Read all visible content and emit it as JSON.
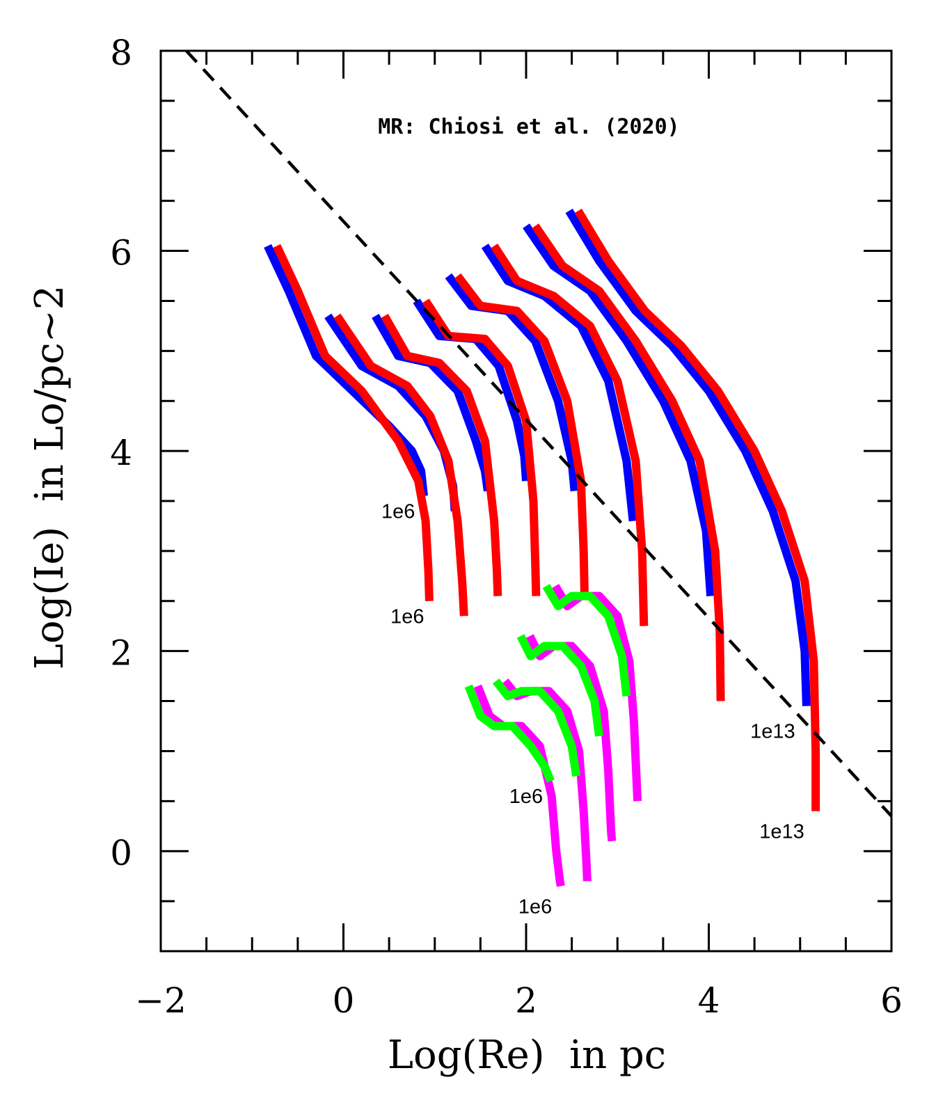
{
  "chart_data": {
    "type": "line",
    "title": "MR: Chiosi et al. (2020)",
    "xlabel": "Log(Re)  in pc",
    "ylabel": "Log(Ie)  in Lo/pc~2",
    "xlim": [
      -2,
      6
    ],
    "ylim": [
      -1,
      8
    ],
    "xticks": [
      -2,
      0,
      2,
      4,
      6
    ],
    "yticks": [
      0,
      2,
      4,
      6,
      8
    ],
    "xticklabels": [
      "−2",
      "0",
      "2",
      "4",
      "6"
    ],
    "yticklabels": [
      "0",
      "2",
      "4",
      "6",
      "8"
    ],
    "reference_line": {
      "name": "dashed line",
      "x": [
        -1.72,
        6.0
      ],
      "y": [
        8.0,
        0.35
      ],
      "color": "#000000"
    },
    "colors": {
      "blue": "#0000ff",
      "red": "#ff0000",
      "magenta": "#ff00ff",
      "green": "#00ff00"
    },
    "series": [
      {
        "name": "blue-1",
        "color": "blue",
        "x": [
          -0.83,
          -0.6,
          -0.3,
          0.1,
          0.5,
          0.75,
          0.85,
          0.88
        ],
        "y": [
          6.05,
          5.6,
          4.95,
          4.6,
          4.25,
          4.0,
          3.8,
          3.55
        ]
      },
      {
        "name": "red-1",
        "color": "red",
        "x": [
          -0.73,
          -0.5,
          -0.2,
          0.2,
          0.6,
          0.82,
          0.9,
          0.93,
          0.94
        ],
        "y": [
          6.05,
          5.6,
          4.95,
          4.6,
          4.1,
          3.7,
          3.3,
          2.8,
          2.5
        ]
      },
      {
        "name": "blue-2",
        "color": "blue",
        "x": [
          -0.17,
          0.2,
          0.6,
          0.9,
          1.1,
          1.2,
          1.22
        ],
        "y": [
          5.35,
          4.85,
          4.65,
          4.35,
          4.0,
          3.65,
          3.4
        ]
      },
      {
        "name": "red-2",
        "color": "red",
        "x": [
          -0.07,
          0.3,
          0.7,
          0.95,
          1.15,
          1.25,
          1.3,
          1.32
        ],
        "y": [
          5.35,
          4.85,
          4.65,
          4.35,
          3.9,
          3.3,
          2.7,
          2.35
        ]
      },
      {
        "name": "blue-3",
        "color": "blue",
        "x": [
          0.35,
          0.6,
          0.95,
          1.25,
          1.45,
          1.55,
          1.58
        ],
        "y": [
          5.35,
          4.95,
          4.88,
          4.6,
          4.1,
          3.8,
          3.6
        ]
      },
      {
        "name": "red-3",
        "color": "red",
        "x": [
          0.45,
          0.7,
          1.05,
          1.35,
          1.55,
          1.65,
          1.68,
          1.69
        ],
        "y": [
          5.35,
          4.95,
          4.88,
          4.6,
          4.1,
          3.3,
          2.8,
          2.55
        ]
      },
      {
        "name": "blue-4",
        "color": "blue",
        "x": [
          0.8,
          1.05,
          1.45,
          1.7,
          1.9,
          1.98,
          2.0
        ],
        "y": [
          5.5,
          5.15,
          5.12,
          4.85,
          4.3,
          3.95,
          3.7
        ]
      },
      {
        "name": "red-4",
        "color": "red",
        "x": [
          0.9,
          1.15,
          1.55,
          1.8,
          2.0,
          2.08,
          2.1,
          2.11
        ],
        "y": [
          5.5,
          5.15,
          5.12,
          4.85,
          4.3,
          3.5,
          2.9,
          2.55
        ]
      },
      {
        "name": "blue-5",
        "color": "blue",
        "x": [
          1.15,
          1.4,
          1.8,
          2.1,
          2.35,
          2.5,
          2.53
        ],
        "y": [
          5.75,
          5.45,
          5.4,
          5.1,
          4.5,
          3.9,
          3.6
        ]
      },
      {
        "name": "red-5",
        "color": "red",
        "x": [
          1.25,
          1.5,
          1.9,
          2.2,
          2.45,
          2.6,
          2.63,
          2.64
        ],
        "y": [
          5.75,
          5.45,
          5.4,
          5.1,
          4.5,
          3.7,
          3.0,
          2.55
        ]
      },
      {
        "name": "blue-6",
        "color": "blue",
        "x": [
          1.55,
          1.8,
          2.2,
          2.6,
          2.9,
          3.1,
          3.17
        ],
        "y": [
          6.05,
          5.7,
          5.55,
          5.25,
          4.7,
          3.9,
          3.3
        ]
      },
      {
        "name": "red-6",
        "color": "red",
        "x": [
          1.65,
          1.9,
          2.3,
          2.7,
          3.0,
          3.2,
          3.27,
          3.29
        ],
        "y": [
          6.05,
          5.7,
          5.55,
          5.25,
          4.7,
          3.9,
          3.0,
          2.25
        ]
      },
      {
        "name": "blue-7",
        "color": "blue",
        "x": [
          2.0,
          2.3,
          2.7,
          3.1,
          3.5,
          3.8,
          3.97,
          4.02
        ],
        "y": [
          6.25,
          5.85,
          5.6,
          5.1,
          4.5,
          3.9,
          3.2,
          2.55
        ]
      },
      {
        "name": "red-7",
        "color": "red",
        "x": [
          2.1,
          2.4,
          2.8,
          3.2,
          3.6,
          3.9,
          4.07,
          4.12,
          4.13
        ],
        "y": [
          6.25,
          5.85,
          5.6,
          5.1,
          4.5,
          3.9,
          3.0,
          2.2,
          1.5
        ]
      },
      {
        "name": "blue-8",
        "color": "blue",
        "x": [
          2.47,
          2.8,
          3.2,
          3.6,
          4.0,
          4.4,
          4.7,
          4.95,
          5.05,
          5.07
        ],
        "y": [
          6.4,
          5.9,
          5.4,
          5.05,
          4.6,
          4.0,
          3.4,
          2.7,
          2.0,
          1.45
        ]
      },
      {
        "name": "red-8",
        "color": "red",
        "x": [
          2.57,
          2.9,
          3.3,
          3.7,
          4.1,
          4.5,
          4.8,
          5.05,
          5.15,
          5.17,
          5.17
        ],
        "y": [
          6.4,
          5.9,
          5.4,
          5.05,
          4.6,
          4.0,
          3.4,
          2.7,
          1.9,
          1.0,
          0.4
        ]
      },
      {
        "name": "magenta-1",
        "color": "magenta",
        "x": [
          1.47,
          1.6,
          1.75,
          1.95,
          2.15,
          2.28,
          2.33,
          2.37,
          2.38
        ],
        "y": [
          1.65,
          1.35,
          1.25,
          1.25,
          1.05,
          0.55,
          0.0,
          -0.3,
          -0.35
        ]
      },
      {
        "name": "green-1",
        "color": "green",
        "x": [
          1.37,
          1.5,
          1.65,
          1.85,
          2.05,
          2.2,
          2.27
        ],
        "y": [
          1.65,
          1.35,
          1.25,
          1.25,
          1.05,
          0.85,
          0.7
        ]
      },
      {
        "name": "magenta-2",
        "color": "magenta",
        "x": [
          1.77,
          1.9,
          2.05,
          2.25,
          2.45,
          2.58,
          2.63,
          2.66,
          2.67
        ],
        "y": [
          1.7,
          1.55,
          1.6,
          1.6,
          1.4,
          1.0,
          0.4,
          -0.1,
          -0.3
        ]
      },
      {
        "name": "green-2",
        "color": "green",
        "x": [
          1.67,
          1.8,
          1.95,
          2.15,
          2.35,
          2.5,
          2.55
        ],
        "y": [
          1.7,
          1.55,
          1.6,
          1.6,
          1.4,
          1.05,
          0.75
        ]
      },
      {
        "name": "magenta-3",
        "color": "magenta",
        "x": [
          2.04,
          2.15,
          2.3,
          2.5,
          2.7,
          2.85,
          2.9,
          2.93,
          2.94
        ],
        "y": [
          2.15,
          1.95,
          2.05,
          2.05,
          1.85,
          1.4,
          0.8,
          0.2,
          0.1
        ]
      },
      {
        "name": "green-3",
        "color": "green",
        "x": [
          1.94,
          2.05,
          2.2,
          2.4,
          2.6,
          2.75,
          2.8
        ],
        "y": [
          2.15,
          1.95,
          2.05,
          2.05,
          1.85,
          1.5,
          1.15
        ]
      },
      {
        "name": "magenta-4",
        "color": "magenta",
        "x": [
          2.32,
          2.45,
          2.6,
          2.8,
          3.0,
          3.13,
          3.18,
          3.21,
          3.22
        ],
        "y": [
          2.65,
          2.45,
          2.55,
          2.55,
          2.35,
          1.9,
          1.3,
          0.7,
          0.5
        ]
      },
      {
        "name": "green-4",
        "color": "green",
        "x": [
          2.22,
          2.35,
          2.5,
          2.7,
          2.9,
          3.05,
          3.1
        ],
        "y": [
          2.65,
          2.45,
          2.55,
          2.55,
          2.35,
          1.95,
          1.55
        ]
      }
    ],
    "annotations": [
      {
        "text": "1e6",
        "x": 0.6,
        "y": 3.4
      },
      {
        "text": "1e6",
        "x": 0.7,
        "y": 2.35
      },
      {
        "text": "1e13",
        "x": 4.7,
        "y": 1.2
      },
      {
        "text": "1e13",
        "x": 4.8,
        "y": 0.2
      },
      {
        "text": "1e6",
        "x": 2.0,
        "y": 0.55
      },
      {
        "text": "1e6",
        "x": 2.1,
        "y": -0.55
      }
    ]
  }
}
